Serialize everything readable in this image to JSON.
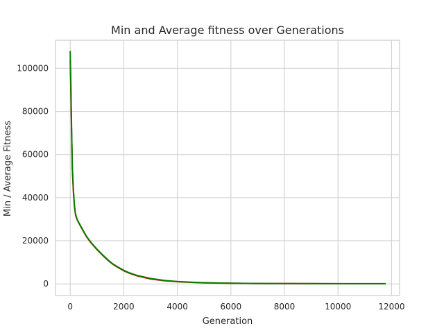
{
  "chart_data": {
    "type": "line",
    "title": "Min and Average fitness over Generations",
    "xlabel": "Generation",
    "ylabel": "Min / Average Fitness",
    "xlim": [
      -550,
      12300
    ],
    "ylim": [
      -5400,
      113000
    ],
    "xticks": [
      0,
      2000,
      4000,
      6000,
      8000,
      10000,
      12000
    ],
    "yticks": [
      0,
      20000,
      40000,
      60000,
      80000,
      100000
    ],
    "grid": true,
    "colors": {
      "min": "#e00000",
      "average": "#0a7d00",
      "grid": "#cccccc",
      "spine": "#cccccc"
    },
    "series": [
      {
        "key": "min",
        "x": [
          0,
          20,
          50,
          80,
          120,
          160,
          200,
          250,
          300,
          400,
          500,
          600,
          700,
          800,
          1000,
          1200,
          1400,
          1600,
          1800,
          2000,
          2200,
          2500,
          3000,
          3500,
          4000,
          4500,
          5000,
          6000,
          7000,
          8000,
          9000,
          10000,
          11000,
          11780
        ],
        "y": [
          104000,
          92000,
          70000,
          53000,
          42000,
          35500,
          32000,
          30000,
          28700,
          26400,
          24200,
          22000,
          20300,
          18700,
          15900,
          13400,
          11000,
          9000,
          7500,
          6100,
          5000,
          3700,
          2300,
          1500,
          1000,
          700,
          500,
          280,
          180,
          130,
          100,
          80,
          70,
          60
        ]
      },
      {
        "key": "average",
        "x": [
          0,
          20,
          50,
          80,
          120,
          160,
          200,
          250,
          300,
          400,
          500,
          600,
          700,
          800,
          1000,
          1200,
          1400,
          1600,
          1800,
          2000,
          2200,
          2500,
          3000,
          3500,
          4000,
          4500,
          5000,
          6000,
          7000,
          8000,
          9000,
          10000,
          11000,
          11780
        ],
        "y": [
          108000,
          95000,
          72000,
          54000,
          43000,
          36000,
          32300,
          30200,
          28900,
          26600,
          24400,
          22200,
          20500,
          18900,
          16100,
          13600,
          11200,
          9200,
          7700,
          6300,
          5200,
          3900,
          2500,
          1650,
          1100,
          780,
          560,
          320,
          210,
          160,
          130,
          110,
          100,
          90
        ]
      }
    ]
  }
}
